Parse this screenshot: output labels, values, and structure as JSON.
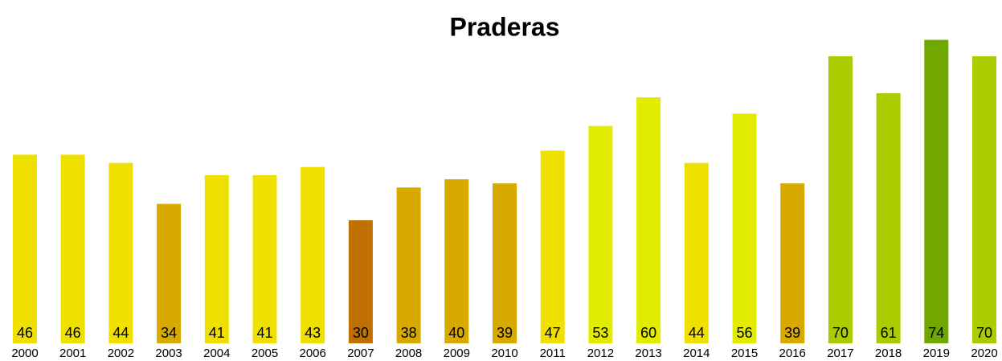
{
  "chart_data": {
    "type": "bar",
    "title": "Praderas",
    "categories": [
      "2000",
      "2001",
      "2002",
      "2003",
      "2004",
      "2005",
      "2006",
      "2007",
      "2008",
      "2009",
      "2010",
      "2011",
      "2012",
      "2013",
      "2014",
      "2015",
      "2016",
      "2017",
      "2018",
      "2019",
      "2020"
    ],
    "values": [
      46,
      46,
      44,
      34,
      41,
      41,
      43,
      30,
      38,
      40,
      39,
      47,
      53,
      60,
      44,
      56,
      39,
      70,
      61,
      74,
      70
    ],
    "colors": [
      "#f0e000",
      "#f0e000",
      "#f0e000",
      "#d8aa00",
      "#f0e000",
      "#f0e000",
      "#f0e000",
      "#c07000",
      "#d8aa00",
      "#d8aa00",
      "#d8aa00",
      "#f0e000",
      "#e2ec00",
      "#e2ec00",
      "#f0e000",
      "#e2ec00",
      "#d8aa00",
      "#aacc00",
      "#aacc00",
      "#70a800",
      "#aacc00"
    ]
  }
}
